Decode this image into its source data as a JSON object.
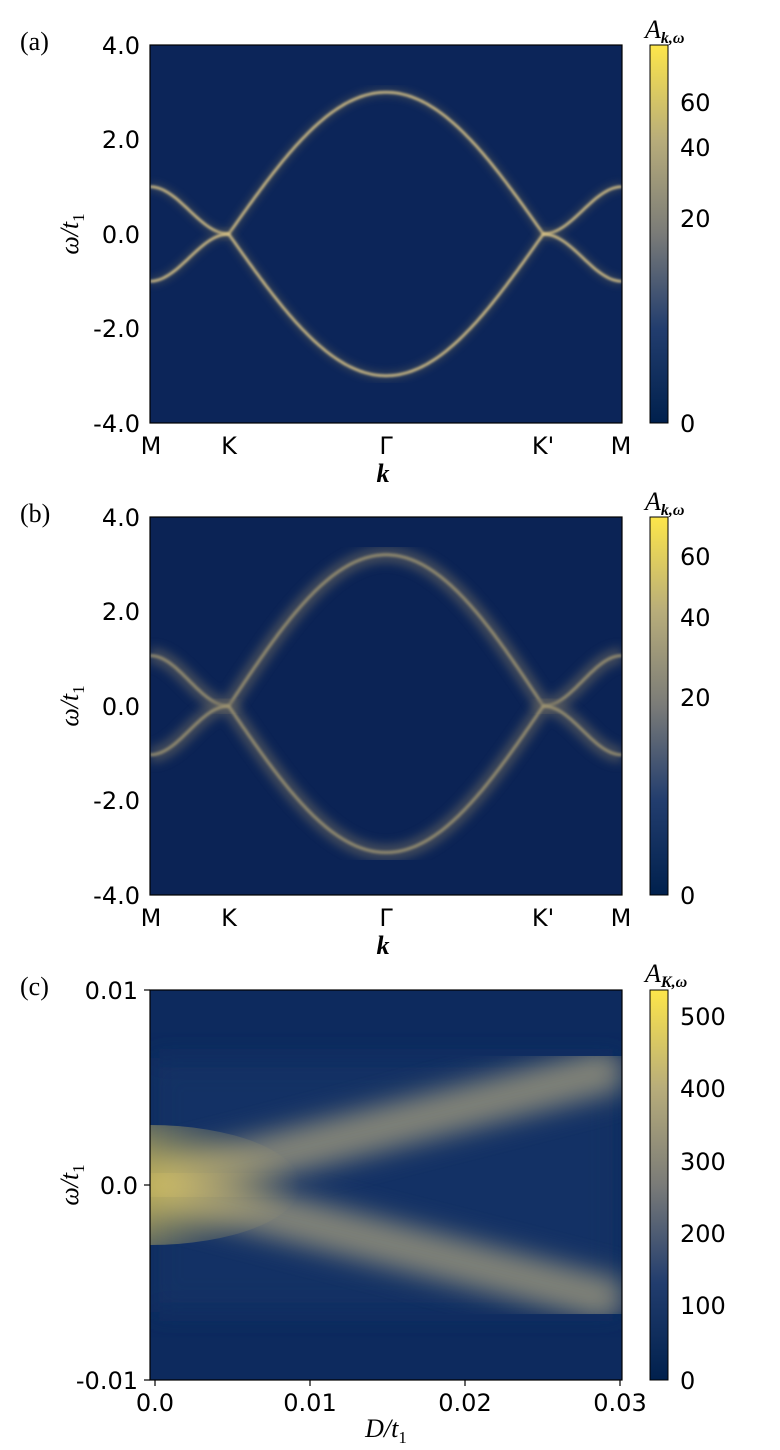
{
  "chart_data": [
    {
      "type": "heatmap",
      "panel_label": "(a)",
      "xlabel": "k",
      "ylabel_main": "ω/t",
      "ylabel_sub": "1",
      "x_ticks": [
        "M",
        "K",
        "Γ",
        "K'",
        "M"
      ],
      "y_ticks": [
        "4.0",
        "2.0",
        "0.0",
        "-2.0",
        "-4.0"
      ],
      "ylim": [
        -4,
        4
      ],
      "colorbar": {
        "title_main": "A",
        "title_sub": "k,ω",
        "ticks": [
          "60",
          "40",
          "20",
          "0"
        ],
        "tick_values": [
          60,
          40,
          20,
          0
        ],
        "max": 72,
        "scale": "nonlinear"
      },
      "bands": {
        "x": [
          0,
          0.25,
          0.5,
          0.75,
          1.0,
          1.25,
          1.5,
          1.75,
          2.0,
          2.25,
          2.5,
          2.75,
          3.0,
          3.25,
          3.5,
          3.75,
          4.0,
          4.25,
          4.5,
          4.75,
          5.0,
          5.25,
          5.5,
          5.75,
          6.0
        ],
        "upper": [
          1.0,
          0.75,
          0.38,
          0.2,
          0.52,
          0.98,
          1.55,
          2.1,
          2.55,
          2.85,
          3.0,
          3.0,
          3.0,
          2.85,
          2.55,
          2.1,
          1.55,
          0.98,
          0.52,
          0.2,
          0.38,
          0.75,
          1.0,
          1.0,
          1.0
        ],
        "lower": [
          -1.0,
          -0.75,
          -0.38,
          -0.2,
          -0.52,
          -0.98,
          -1.55,
          -2.1,
          -2.55,
          -2.85,
          -3.0,
          -3.0,
          -3.0,
          -2.85,
          -2.55,
          -2.1,
          -1.55,
          -0.98,
          -0.52,
          -0.2,
          -0.38,
          -0.75,
          -1.0,
          -1.0,
          -1.0
        ]
      }
    },
    {
      "type": "heatmap",
      "panel_label": "(b)",
      "xlabel": "k",
      "ylabel_main": "ω/t",
      "ylabel_sub": "1",
      "x_ticks": [
        "M",
        "K",
        "Γ",
        "K'",
        "M"
      ],
      "y_ticks": [
        "4.0",
        "2.0",
        "0.0",
        "-2.0",
        "-4.0"
      ],
      "ylim": [
        -4,
        4
      ],
      "colorbar": {
        "title_main": "A",
        "title_sub": "k,ω",
        "ticks": [
          "60",
          "40",
          "20",
          "0"
        ],
        "tick_values": [
          60,
          40,
          20,
          0
        ],
        "max": 70,
        "scale": "nonlinear"
      },
      "bands": {
        "upper_at_gamma": 3.2,
        "lower_at_gamma": -3.1,
        "upper_at_M": 0.85,
        "lower_at_M": -0.85,
        "broadened": true
      }
    },
    {
      "type": "heatmap",
      "panel_label": "(c)",
      "xlabel_main": "D/t",
      "xlabel_sub": "1",
      "ylabel_main": "ω/t",
      "ylabel_sub": "1",
      "x_ticks": [
        "0.0",
        "0.01",
        "0.02",
        "0.03"
      ],
      "x_values": [
        0.0,
        0.01,
        0.02,
        0.03
      ],
      "y_ticks": [
        "0.01",
        "0.0",
        "-0.01"
      ],
      "y_values": [
        0.01,
        0.0,
        -0.01
      ],
      "xlim": [
        0,
        0.03
      ],
      "ylim": [
        -0.01,
        0.01
      ],
      "colorbar": {
        "title_main": "A",
        "title_sub": "K,ω",
        "ticks": [
          "500",
          "400",
          "300",
          "200",
          "100",
          "0"
        ],
        "tick_values": [
          500,
          400,
          300,
          200,
          100,
          0
        ],
        "max": 540,
        "scale": "linear"
      },
      "branches": {
        "splitting_slope": 0.2,
        "peak_at_origin": 540
      }
    }
  ],
  "colors": {
    "background_dark": "#0b2355",
    "band_light": "#e0c98a",
    "colormap_high": "#fde64a"
  }
}
